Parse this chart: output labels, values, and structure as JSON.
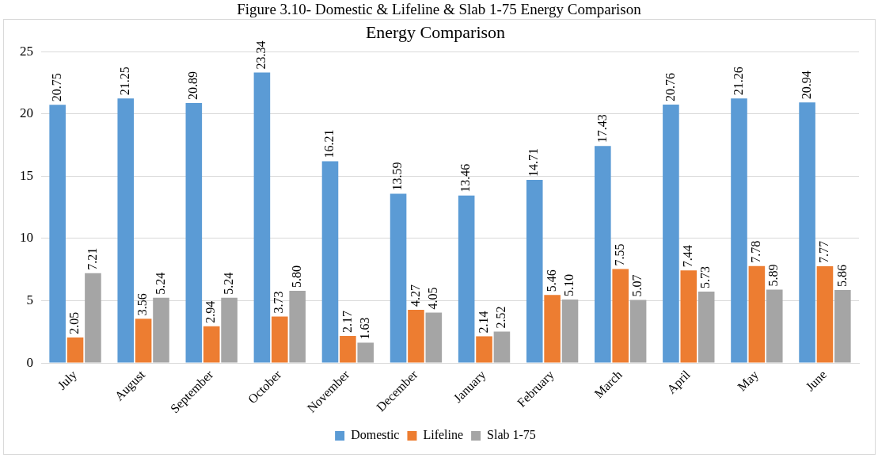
{
  "chart_data": {
    "type": "bar",
    "title": "Energy Comparison",
    "annotations": [
      "Figure 3.10- Domestic & Lifeline & Slab 1-75 Energy Comparison"
    ],
    "categories": [
      "July",
      "August",
      "September",
      "October",
      "November",
      "December",
      "January",
      "February",
      "March",
      "April",
      "May",
      "June"
    ],
    "series": [
      {
        "name": "Domestic",
        "color": "#5b9bd5",
        "values": [
          20.75,
          21.25,
          20.89,
          23.34,
          16.21,
          13.59,
          13.46,
          14.71,
          17.43,
          20.76,
          21.26,
          20.94
        ],
        "value_labels": [
          "20.75",
          "21.25",
          "20.89",
          "23.34",
          "16.21",
          "13.59",
          "13.46",
          "14.71",
          "17.43",
          "20.76",
          "21.26",
          "20.94"
        ]
      },
      {
        "name": "Lifeline",
        "color": "#ed7d31",
        "values": [
          2.05,
          3.56,
          2.94,
          3.73,
          2.17,
          4.27,
          2.14,
          5.46,
          7.55,
          7.44,
          7.78,
          7.77
        ],
        "value_labels": [
          "2.05",
          "3.56",
          "2.94",
          "3.73",
          "2.17",
          "4.27",
          "2.14",
          "5.46",
          "7.55",
          "7.44",
          "7.78",
          "7.77"
        ]
      },
      {
        "name": "Slab 1-75",
        "color": "#a5a5a5",
        "values": [
          7.21,
          5.24,
          5.24,
          5.8,
          1.63,
          4.05,
          2.52,
          5.1,
          5.07,
          5.73,
          5.89,
          5.86
        ],
        "value_labels": [
          "7.21",
          "5.24",
          "5.24",
          "5.80",
          "1.63",
          "4.05",
          "2.52",
          "5.10",
          "5.07",
          "5.73",
          "5.89",
          "5.86"
        ]
      }
    ],
    "ylim": [
      0,
      25
    ],
    "yticks": [
      0,
      5,
      10,
      15,
      20,
      25
    ],
    "grid": "y",
    "legend": "bottom"
  }
}
